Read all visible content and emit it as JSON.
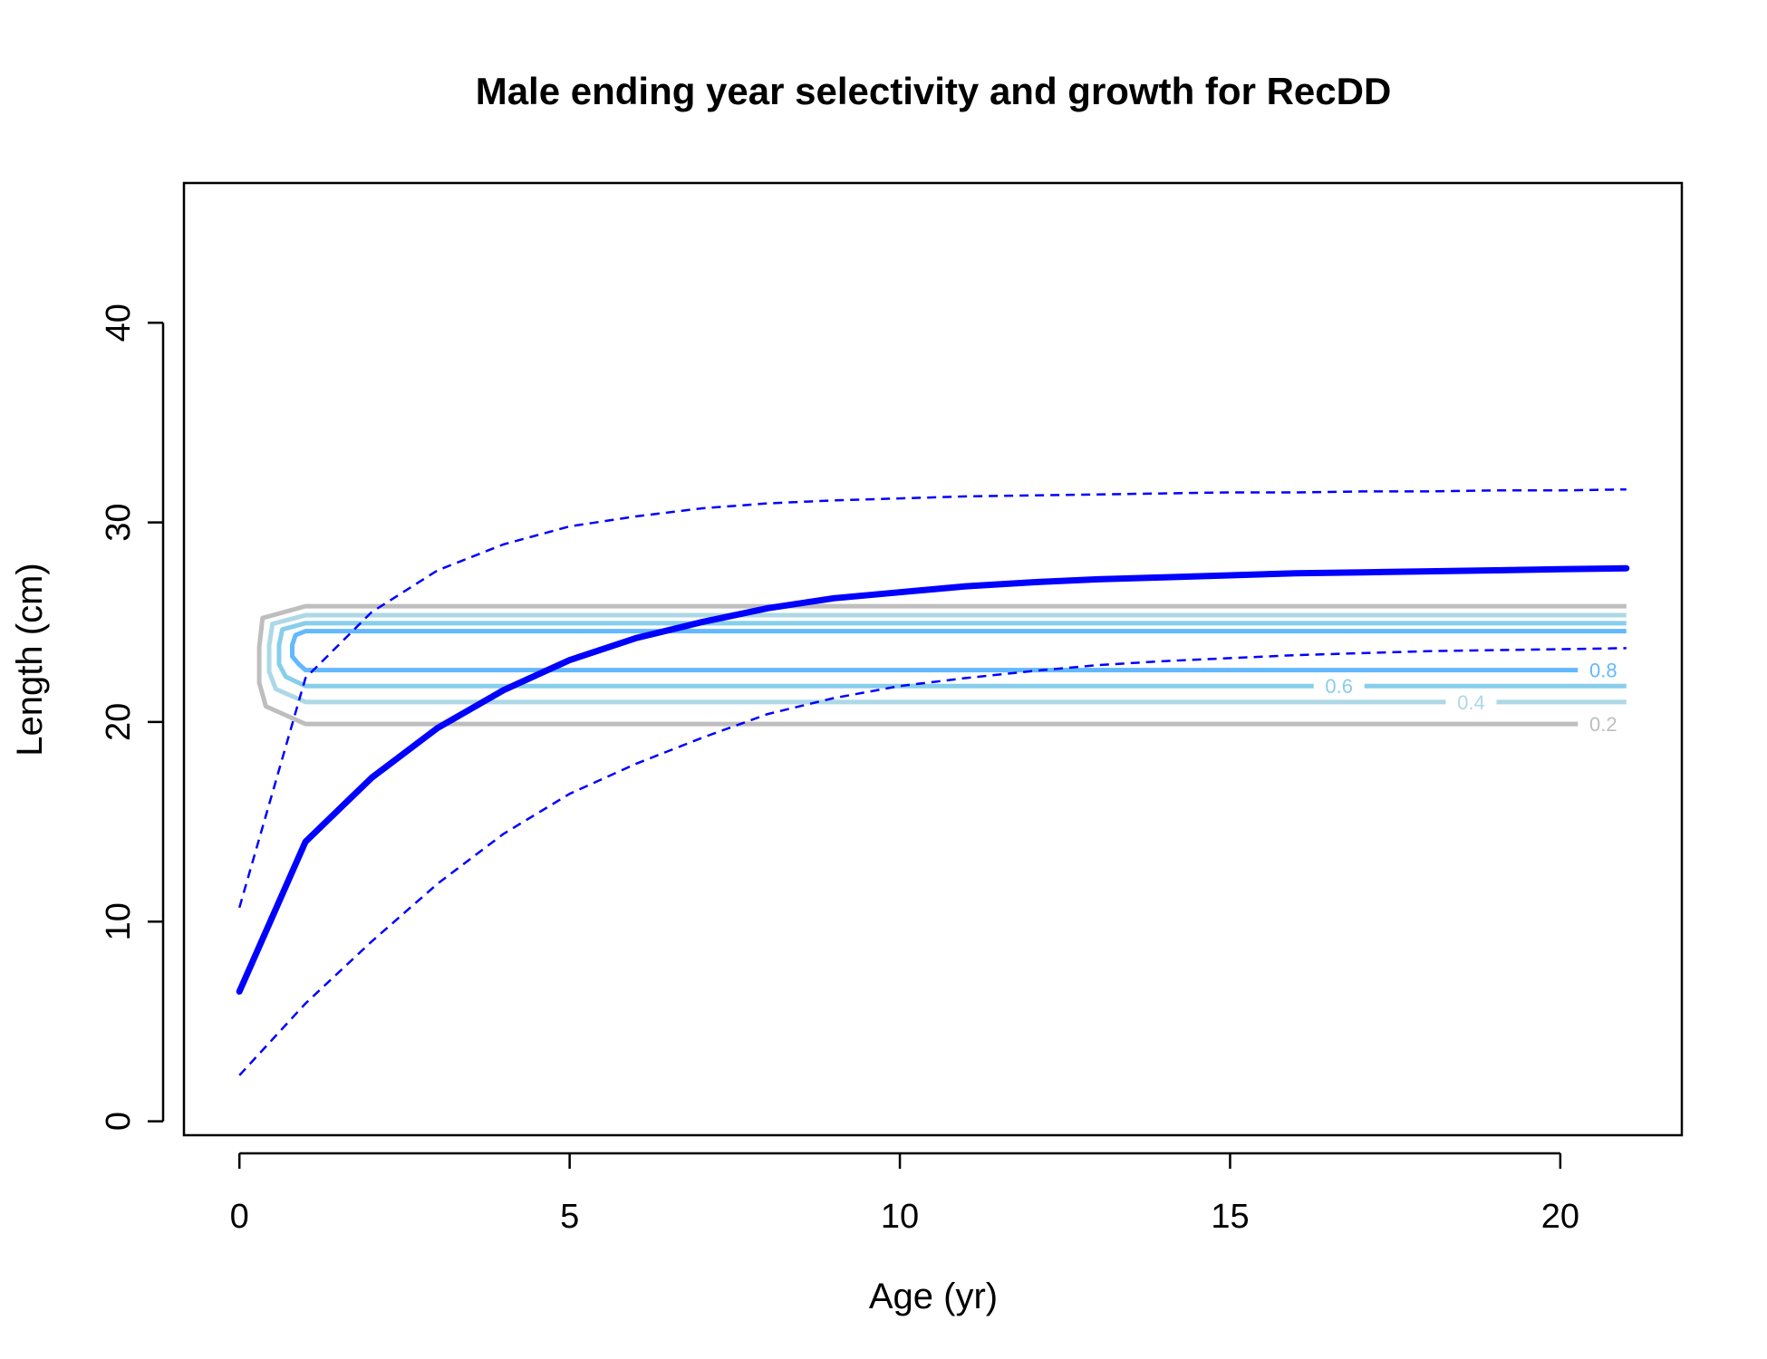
{
  "chart_data": {
    "type": "line",
    "title": "Male ending year selectivity and growth for RecDD",
    "xlabel": "Age (yr)",
    "ylabel": "Length (cm)",
    "xlim": [
      -0.84,
      21.84
    ],
    "ylim": [
      -0.7,
      47
    ],
    "x_ticks": [
      0,
      5,
      10,
      15,
      20
    ],
    "y_ticks": [
      0,
      10,
      20,
      30,
      40
    ],
    "grid": false,
    "colors": {
      "growth": "#0000ff",
      "contour_0.2": "#bebebe",
      "contour_0.4": "#add8e6",
      "contour_0.6": "#87ceeb",
      "contour_0.8": "#63b8ff"
    },
    "series": [
      {
        "style": "solid-thick",
        "x": [
          0,
          1,
          2,
          3,
          4,
          5,
          6,
          7,
          8,
          9,
          10,
          11,
          12,
          13,
          14,
          15,
          16,
          17,
          18,
          19,
          20,
          21
        ],
        "y": [
          6.5,
          14.0,
          17.2,
          19.7,
          21.6,
          23.1,
          24.2,
          25.0,
          25.7,
          26.2,
          26.5,
          26.8,
          27.0,
          27.15,
          27.25,
          27.35,
          27.45,
          27.5,
          27.55,
          27.6,
          27.65,
          27.7
        ]
      },
      {
        "style": "dashed",
        "x": [
          0,
          1,
          2,
          3,
          4,
          5,
          6,
          7,
          8,
          9,
          10,
          11,
          12,
          13,
          14,
          15,
          16,
          17,
          18,
          19,
          20,
          21
        ],
        "y": [
          10.7,
          22.2,
          25.5,
          27.6,
          28.9,
          29.8,
          30.3,
          30.7,
          30.95,
          31.1,
          31.2,
          31.3,
          31.35,
          31.4,
          31.45,
          31.5,
          31.5,
          31.55,
          31.55,
          31.6,
          31.6,
          31.65
        ]
      },
      {
        "style": "dashed",
        "x": [
          0,
          1,
          2,
          3,
          4,
          5,
          6,
          7,
          8,
          9,
          10,
          11,
          12,
          13,
          14,
          15,
          16,
          17,
          18,
          19,
          20,
          21
        ],
        "y": [
          2.3,
          5.9,
          9.0,
          11.9,
          14.4,
          16.4,
          17.9,
          19.2,
          20.4,
          21.2,
          21.8,
          22.2,
          22.55,
          22.85,
          23.05,
          23.2,
          23.35,
          23.45,
          23.55,
          23.6,
          23.65,
          23.7
        ]
      }
    ],
    "contours": [
      {
        "level": "0.2",
        "upper": 25.8,
        "lower": 19.9,
        "xmin": 0.3,
        "label_x": 20.65
      },
      {
        "level": "0.4",
        "upper": 25.35,
        "lower": 21.0,
        "xmin": 0.45,
        "label_x": 18.65
      },
      {
        "level": "0.6",
        "upper": 24.95,
        "lower": 21.8,
        "xmin": 0.6,
        "label_x": 16.65
      },
      {
        "level": "0.8",
        "upper": 24.55,
        "lower": 22.6,
        "xmin": 0.8,
        "label_x": 20.65
      }
    ]
  }
}
